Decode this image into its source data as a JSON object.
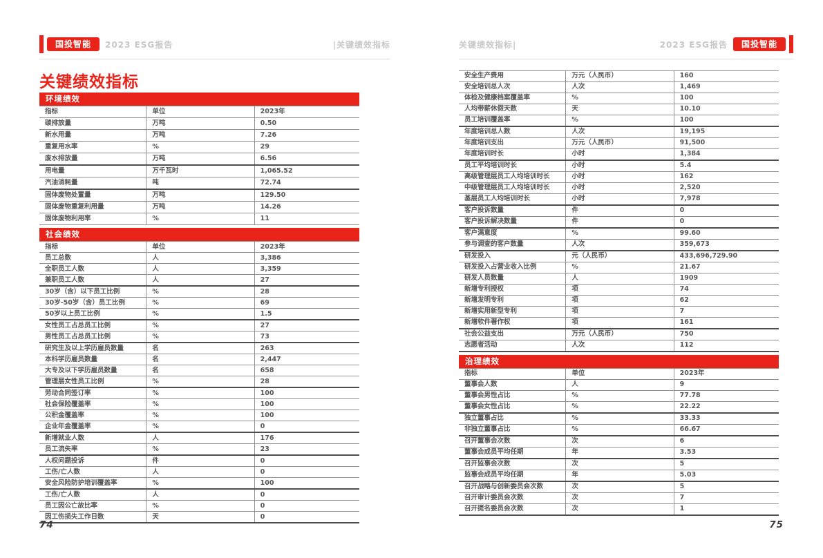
{
  "colors": {
    "accent": "#e8231a",
    "table_text": "#595757",
    "muted_header": "#c7c8c9"
  },
  "page_left": {
    "page_number": "74",
    "header": {
      "brand": "国投智能",
      "report": "2023 ESG报告",
      "section": "|关键绩效指标"
    },
    "title": "关键绩效指标",
    "sections": [
      {
        "heading": "环境绩效",
        "columns": [
          "指标",
          "单位",
          "2023年"
        ],
        "rows": [
          [
            "碳排放量",
            "万吨",
            "0.50"
          ],
          [
            "新水用量",
            "万吨",
            "7.26"
          ],
          [
            "重复用水率",
            "%",
            "29"
          ],
          [
            "废水排放量",
            "万吨",
            "6.56"
          ],
          [
            "用电量",
            "万千瓦时",
            "1,065.52"
          ],
          [
            "汽油消耗量",
            "吨",
            "72.74"
          ],
          [
            "固体废物处置量",
            "万吨",
            "129.50"
          ],
          [
            "固体废物重复利用量",
            "万吨",
            "14.26"
          ],
          [
            "固体废物利用率",
            "%",
            "11"
          ]
        ],
        "thick_after": [
          3,
          5
        ]
      },
      {
        "heading": "社会绩效",
        "columns": [
          "指标",
          "单位",
          "2023年"
        ],
        "rows": [
          [
            "员工总数",
            "人",
            "3,386"
          ],
          [
            "全职员工人数",
            "人",
            "3,359"
          ],
          [
            "兼职员工人数",
            "人",
            "27"
          ],
          [
            "30岁（含）以下员工比例",
            "%",
            "28"
          ],
          [
            "30岁-50岁（含）员工比例",
            "%",
            "69"
          ],
          [
            "50岁以上员工比例",
            "%",
            "1.5"
          ],
          [
            "女性员工占总员工比例",
            "%",
            "27"
          ],
          [
            "男性员工占总员工比例",
            "%",
            "73"
          ],
          [
            "研究生及以上学历雇员数量",
            "名",
            "263"
          ],
          [
            "本科学历雇员数量",
            "名",
            "2,447"
          ],
          [
            "大专及以下学历雇员数量",
            "名",
            "658"
          ],
          [
            "管理层女性员工比例",
            "%",
            "28"
          ],
          [
            "劳动合同签订率",
            "%",
            "100"
          ],
          [
            "社会保险覆盖率",
            "%",
            "100"
          ],
          [
            "公积金覆盖率",
            "%",
            "100"
          ],
          [
            "企业年金覆盖率",
            "%",
            "0"
          ],
          [
            "新增就业人数",
            "人",
            "176"
          ],
          [
            "员工流失率",
            "%",
            "23"
          ],
          [
            "人权问题投诉",
            "件",
            "0"
          ],
          [
            "工伤/亡人数",
            "人",
            "0"
          ],
          [
            "安全风险防护培训覆盖率",
            "%",
            "100"
          ],
          [
            "工伤/亡人数",
            "人",
            "0"
          ],
          [
            "员工因公亡故比率",
            "%",
            "0"
          ],
          [
            "因工伤损失工作日数",
            "天",
            "0"
          ]
        ],
        "thick_after": [
          2,
          5,
          7,
          11,
          15,
          17,
          20,
          23
        ]
      }
    ]
  },
  "page_right": {
    "page_number": "75",
    "header": {
      "section": "关键绩效指标|",
      "report": "2023 ESG报告",
      "brand": "国投智能"
    },
    "sections": [
      {
        "heading": null,
        "columns": null,
        "rows": [
          [
            "安全生产费用",
            "万元（人民币）",
            "160"
          ],
          [
            "安全培训总人次",
            "人次",
            "1,469"
          ],
          [
            "体检及健康档案覆盖率",
            "%",
            "100"
          ],
          [
            "人均带薪休假天数",
            "天",
            "10.10"
          ],
          [
            "员工培训覆盖率",
            "%",
            "100"
          ],
          [
            "年度培训总人数",
            "人次",
            "19,195"
          ],
          [
            "年度培训支出",
            "万元（人民币）",
            "91,500"
          ],
          [
            "年度培训时长",
            "小时",
            "1,384"
          ],
          [
            "员工平均培训时长",
            "小时",
            "5.4"
          ],
          [
            "高级管理层员工人均培训时长",
            "小时",
            "162"
          ],
          [
            "中级管理层员工人均培训时长",
            "小时",
            "2,520"
          ],
          [
            "基层员工人均培训时长",
            "小时",
            "7,978"
          ],
          [
            "客户投诉数量",
            "件",
            "0"
          ],
          [
            "客户投诉解决数量",
            "件",
            "0"
          ],
          [
            "客户满意度",
            "%",
            "99.60"
          ],
          [
            "参与调查的客户数量",
            "人次",
            "359,673"
          ],
          [
            "研发投入",
            "元（人民币）",
            "433,696,729.90"
          ],
          [
            "研发投入占营业收入比例",
            "%",
            "21.67"
          ],
          [
            "研发人员数量",
            "人",
            "1909"
          ],
          [
            "新增专利授权",
            "项",
            "74"
          ],
          [
            "新增发明专利",
            "项",
            "62"
          ],
          [
            "新增实用新型专利",
            "项",
            "7"
          ],
          [
            "新增软件著作权",
            "项",
            "161"
          ],
          [
            "社会公益支出",
            "万元（人民币）",
            "750"
          ],
          [
            "志愿者活动",
            "人次",
            "112"
          ]
        ],
        "thick_after": [
          4,
          7,
          11,
          13,
          15,
          22,
          24
        ]
      },
      {
        "heading": "治理绩效",
        "columns": [
          "指标",
          "单位",
          "2023年"
        ],
        "rows": [
          [
            "董事会人数",
            "人",
            "9"
          ],
          [
            "董事会男性占比",
            "%",
            "77.78"
          ],
          [
            "董事会女性占比",
            "%",
            "22.22"
          ],
          [
            "独立董事占比",
            "%",
            "33.33"
          ],
          [
            "非独立董事占比",
            "%",
            "66.67"
          ],
          [
            "召开董事会次数",
            "次",
            "6"
          ],
          [
            "董事会成员平均任期",
            "年",
            "3.53"
          ],
          [
            "召开监事会次数",
            "次",
            "5"
          ],
          [
            "监事会成员平均任期",
            "年",
            "5.03"
          ],
          [
            "召开战略与创新委员会次数",
            "次",
            "5"
          ],
          [
            "召开审计委员会次数",
            "次",
            "7"
          ],
          [
            "召开提名委员会次数",
            "次",
            "1"
          ]
        ],
        "thick_after": [
          2,
          4,
          6,
          8,
          11
        ]
      }
    ]
  }
}
